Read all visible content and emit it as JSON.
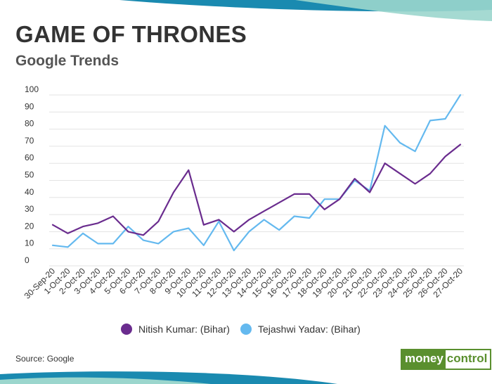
{
  "header": {
    "title": "GAME OF THRONES",
    "subtitle": "Google Trends"
  },
  "footer": {
    "source": "Source: Google",
    "logo_part1": "money",
    "logo_part2": "control"
  },
  "colors": {
    "nitish": "#6a2c8e",
    "tejashwi": "#64b9ef",
    "grid": "#e3e3e3",
    "brand_green": "#5a8f2e",
    "top_band_dark": "#1a8ab0",
    "top_band_light": "#9bd6cd"
  },
  "chart_data": {
    "type": "line",
    "categories": [
      "30-Sep-20",
      "1-Oct-20",
      "2-Oct-20",
      "3-Oct-20",
      "4-Oct-20",
      "5-Oct-20",
      "6-Oct-20",
      "7-Oct-20",
      "8-Oct-20",
      "9-Oct-20",
      "10-Oct-20",
      "11-Oct-20",
      "12-Oct-20",
      "13-Oct-20",
      "14-Oct-20",
      "15-Oct-20",
      "16-Oct-20",
      "17-Oct-20",
      "18-Oct-20",
      "19-Oct-20",
      "20-Oct-20",
      "21-Oct-20",
      "22-Oct-20",
      "23-Oct-20",
      "24-Oct-20",
      "25-Oct-20",
      "26-Oct-20",
      "27-Oct-20"
    ],
    "series": [
      {
        "name": "Nitish Kumar: (Bihar)",
        "values": [
          24,
          19,
          23,
          25,
          29,
          20,
          18,
          26,
          43,
          56,
          24,
          27,
          20,
          27,
          32,
          37,
          42,
          42,
          33,
          39,
          51,
          43,
          60,
          54,
          48,
          54,
          64,
          71
        ]
      },
      {
        "name": "Tejashwi Yadav: (Bihar)",
        "values": [
          12,
          11,
          19,
          13,
          13,
          23,
          15,
          13,
          20,
          22,
          12,
          26,
          9,
          20,
          27,
          21,
          29,
          28,
          39,
          39,
          50,
          44,
          82,
          72,
          67,
          85,
          86,
          100
        ]
      }
    ],
    "yticks": [
      0,
      10,
      20,
      30,
      40,
      50,
      60,
      70,
      80,
      90,
      100
    ],
    "ylim": [
      0,
      100
    ],
    "grid": true,
    "legend": "bottom-center"
  }
}
